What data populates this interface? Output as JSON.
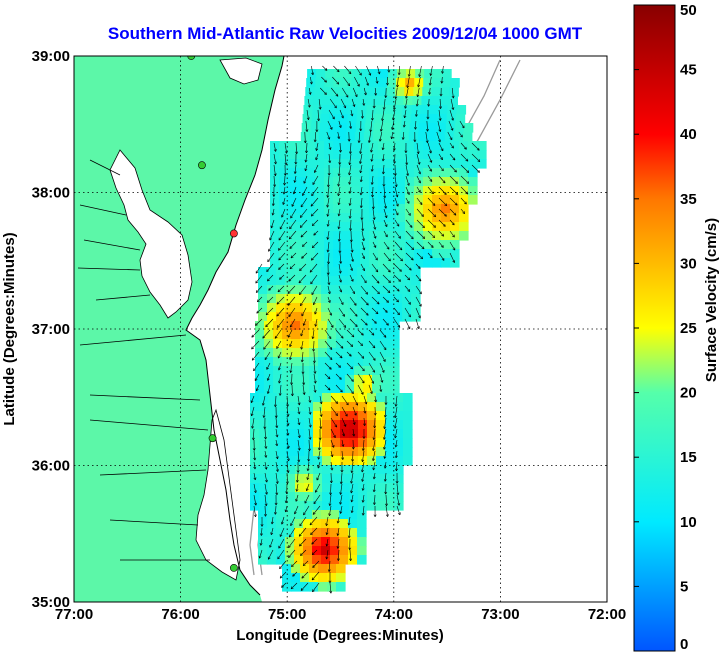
{
  "title": "Southern Mid-Atlantic Raw Velocities 2009/12/04 1000 GMT",
  "map": {
    "xlabel": "Longitude (Degrees:Minutes)",
    "ylabel": "Latitude (Degrees:Minutes)",
    "lon_range": [
      -77,
      -72
    ],
    "lat_range": [
      35,
      39
    ],
    "lon_ticks": [
      {
        "value": -77,
        "label": "77:00"
      },
      {
        "value": -76,
        "label": "76:00"
      },
      {
        "value": -75,
        "label": "75:00"
      },
      {
        "value": -74,
        "label": "74:00"
      },
      {
        "value": -73,
        "label": "73:00"
      },
      {
        "value": -72,
        "label": "72:00"
      }
    ],
    "lat_ticks": [
      {
        "value": 35,
        "label": "35:00"
      },
      {
        "value": 36,
        "label": "36:00"
      },
      {
        "value": 37,
        "label": "37:00"
      },
      {
        "value": 38,
        "label": "38:00"
      },
      {
        "value": 39,
        "label": "39:00"
      }
    ],
    "grid": "dotted",
    "land_color": "#5cf7a8",
    "stations": [
      {
        "lon": -75.9,
        "lat": 39.0,
        "color": "#33cc33"
      },
      {
        "lon": -75.8,
        "lat": 38.2,
        "color": "#33cc33"
      },
      {
        "lon": -75.5,
        "lat": 37.7,
        "color": "#ff3333"
      },
      {
        "lon": -75.7,
        "lat": 36.2,
        "color": "#33cc33"
      },
      {
        "lon": -75.5,
        "lat": 35.25,
        "color": "#33cc33"
      }
    ]
  },
  "colorbar": {
    "label": "Surface Velocity (cm/s)",
    "min": 0,
    "max": 50,
    "ticks": [
      "0",
      "5",
      "10",
      "15",
      "20",
      "25",
      "30",
      "35",
      "40",
      "45",
      "50"
    ],
    "tick_values": [
      0,
      5,
      10,
      15,
      20,
      25,
      30,
      35,
      40,
      45,
      50
    ]
  }
}
